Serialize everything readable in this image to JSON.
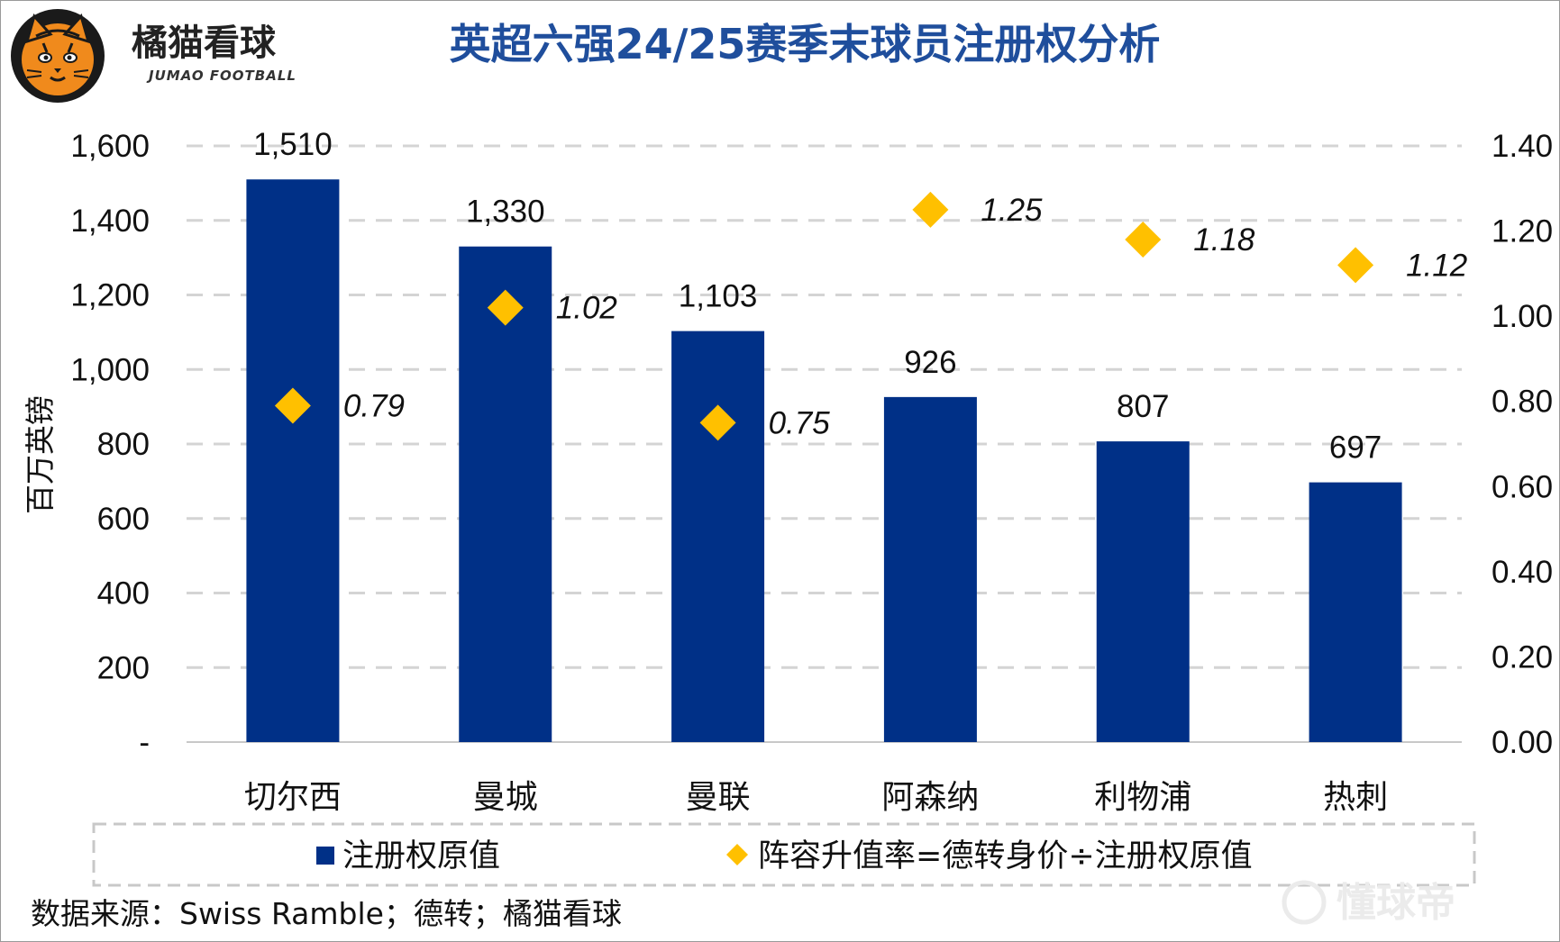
{
  "brand": {
    "name_cn": "橘猫看球",
    "name_en": "JUMAO FOOTBALL"
  },
  "chart_data": {
    "type": "bar",
    "title": "英超六强24/25赛季末球员注册权分析",
    "ylabel": "百万英镑",
    "ylim": [
      0,
      1600
    ],
    "yticks": [
      "-",
      "200",
      "400",
      "600",
      "800",
      "1,000",
      "1,200",
      "1,400",
      "1,600"
    ],
    "y2lim": [
      0,
      1.4
    ],
    "y2ticks": [
      "0.00",
      "0.20",
      "0.40",
      "0.60",
      "0.80",
      "1.00",
      "1.20",
      "1.40"
    ],
    "categories": [
      "切尔西",
      "曼城",
      "曼联",
      "阿森纳",
      "利物浦",
      "热刺"
    ],
    "series": [
      {
        "name": "注册权原值",
        "type": "bar",
        "axis": "left",
        "values": [
          1510,
          1330,
          1103,
          926,
          807,
          697
        ],
        "labels": [
          "1,510",
          "1,330",
          "1,103",
          "926",
          "807",
          "697"
        ],
        "color": "#003087"
      },
      {
        "name": "阵容升值率=德转身价÷注册权原值",
        "type": "scatter",
        "marker": "diamond",
        "axis": "right",
        "values": [
          0.79,
          1.02,
          0.75,
          1.25,
          1.18,
          1.12
        ],
        "labels": [
          "0.79",
          "1.02",
          "0.75",
          "1.25",
          "1.18",
          "1.12"
        ],
        "color": "#ffc000"
      }
    ],
    "grid": true,
    "legend": "bottom"
  },
  "source": "数据来源：Swiss Ramble；德转；橘猫看球",
  "watermark": "懂球帝"
}
